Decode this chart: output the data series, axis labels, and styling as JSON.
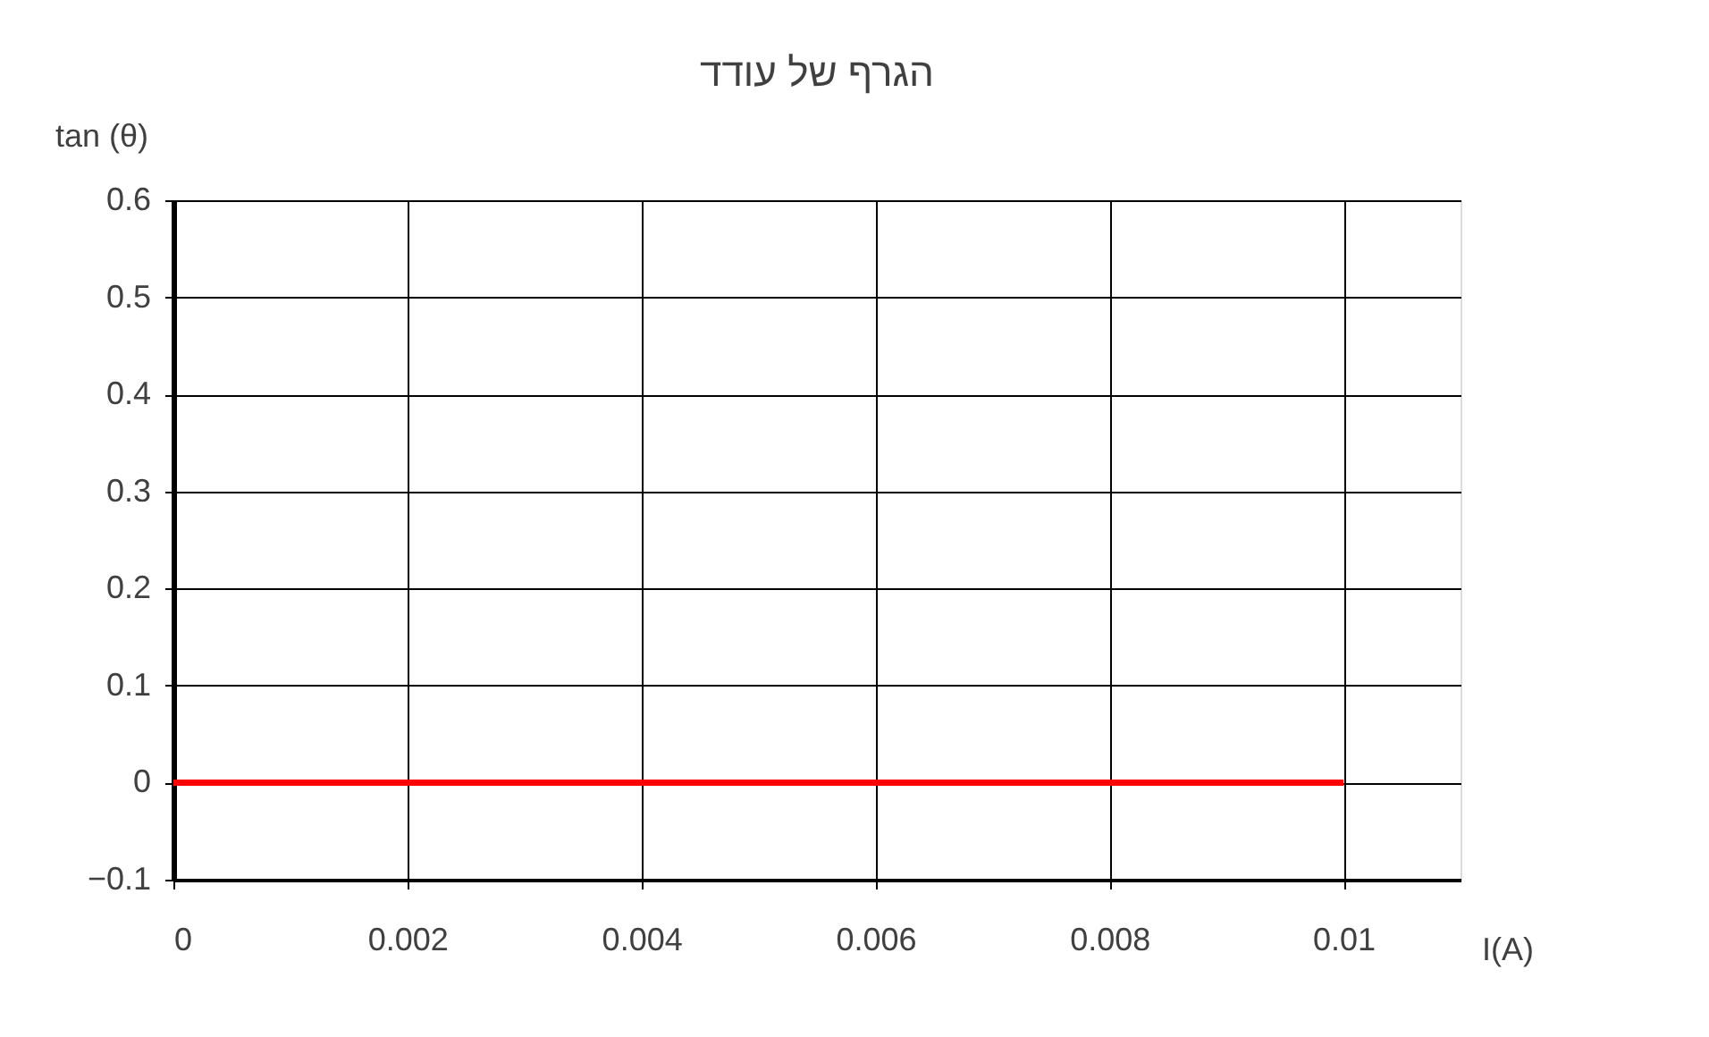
{
  "chart_data": {
    "type": "line",
    "title": "הגרף של עודד",
    "xlabel": "I(A)",
    "ylabel": "tan (θ)",
    "x": [
      0,
      0.01
    ],
    "series": [
      {
        "color": "#ff0000",
        "values": [
          0,
          0
        ]
      }
    ],
    "xlim": [
      0,
      0.011
    ],
    "xticks": [
      0,
      0.002,
      0.004,
      0.006,
      0.008,
      0.01
    ],
    "ylim": [
      -0.1,
      0.6
    ],
    "yticks": [
      -0.1,
      0,
      0.1,
      0.2,
      0.3,
      0.4,
      0.5,
      0.6
    ],
    "grid": true,
    "marker": "none",
    "line_style": "solid"
  }
}
